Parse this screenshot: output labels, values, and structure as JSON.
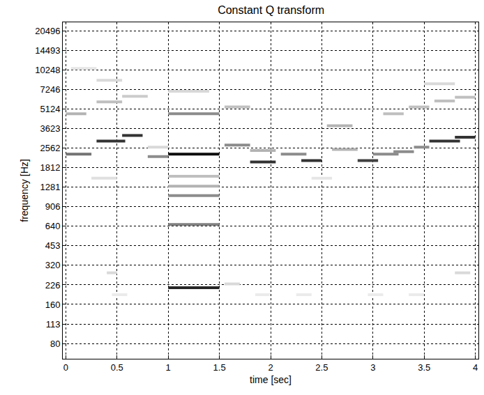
{
  "chart_data": {
    "type": "spectrogram",
    "title": "Constant Q transform",
    "x_label": "time [sec]",
    "y_label": "frequency [Hz]",
    "log": "y",
    "grid": true,
    "xlim": [
      -0.03,
      4.03
    ],
    "xticks": [
      0,
      0.5,
      1,
      1.5,
      2,
      2.5,
      3,
      3.5,
      4
    ],
    "ylim": [
      61,
      23800
    ],
    "yticks": [
      80,
      113,
      160,
      226,
      320,
      453,
      640,
      906,
      1281,
      1812,
      2562,
      3623,
      5124,
      7246,
      10248,
      14493,
      20496
    ],
    "color_range": [
      0,
      1
    ],
    "segments": [
      {
        "t0": 0.0,
        "t1": 0.25,
        "f": 2300,
        "level": 0.55
      },
      {
        "t0": 0.0,
        "t1": 0.2,
        "f": 4700,
        "level": 0.3
      },
      {
        "t0": 0.05,
        "t1": 0.3,
        "f": 10500,
        "level": 0.1
      },
      {
        "t0": 0.3,
        "t1": 0.58,
        "f": 2900,
        "level": 0.8
      },
      {
        "t0": 0.55,
        "t1": 0.75,
        "f": 3200,
        "level": 0.8
      },
      {
        "t0": 0.3,
        "t1": 0.55,
        "f": 5800,
        "level": 0.25
      },
      {
        "t0": 0.3,
        "t1": 0.55,
        "f": 8500,
        "level": 0.15
      },
      {
        "t0": 0.55,
        "t1": 0.8,
        "f": 6400,
        "level": 0.2
      },
      {
        "t0": 0.25,
        "t1": 0.5,
        "f": 1500,
        "level": 0.12
      },
      {
        "t0": 0.4,
        "t1": 0.5,
        "f": 280,
        "level": 0.15
      },
      {
        "t0": 0.8,
        "t1": 1.0,
        "f": 2200,
        "level": 0.45
      },
      {
        "t0": 0.8,
        "t1": 1.0,
        "f": 2600,
        "level": 0.15
      },
      {
        "t0": 1.0,
        "t1": 1.5,
        "f": 2300,
        "level": 0.95
      },
      {
        "t0": 1.0,
        "t1": 1.5,
        "f": 4700,
        "level": 0.45
      },
      {
        "t0": 1.0,
        "t1": 1.4,
        "f": 7000,
        "level": 0.15
      },
      {
        "t0": 1.0,
        "t1": 1.5,
        "f": 1100,
        "level": 0.45
      },
      {
        "t0": 1.0,
        "t1": 1.5,
        "f": 1300,
        "level": 0.3
      },
      {
        "t0": 1.0,
        "t1": 1.5,
        "f": 1550,
        "level": 0.25
      },
      {
        "t0": 1.0,
        "t1": 1.5,
        "f": 660,
        "level": 0.5
      },
      {
        "t0": 1.0,
        "t1": 1.5,
        "f": 215,
        "level": 0.85
      },
      {
        "t0": 1.55,
        "t1": 1.8,
        "f": 2700,
        "level": 0.45
      },
      {
        "t0": 1.55,
        "t1": 1.8,
        "f": 5300,
        "level": 0.25
      },
      {
        "t0": 1.55,
        "t1": 1.7,
        "f": 230,
        "level": 0.15
      },
      {
        "t0": 1.8,
        "t1": 2.05,
        "f": 2000,
        "level": 0.8
      },
      {
        "t0": 1.8,
        "t1": 2.05,
        "f": 2450,
        "level": 0.3
      },
      {
        "t0": 2.1,
        "t1": 2.35,
        "f": 2300,
        "level": 0.45
      },
      {
        "t0": 2.3,
        "t1": 2.5,
        "f": 2050,
        "level": 0.8
      },
      {
        "t0": 2.4,
        "t1": 2.6,
        "f": 1500,
        "level": 0.1
      },
      {
        "t0": 2.55,
        "t1": 2.8,
        "f": 3800,
        "level": 0.3
      },
      {
        "t0": 2.6,
        "t1": 2.85,
        "f": 2500,
        "level": 0.3
      },
      {
        "t0": 2.85,
        "t1": 3.05,
        "f": 2050,
        "level": 0.75
      },
      {
        "t0": 3.0,
        "t1": 3.25,
        "f": 2300,
        "level": 0.45
      },
      {
        "t0": 3.2,
        "t1": 3.4,
        "f": 2400,
        "level": 0.45
      },
      {
        "t0": 3.4,
        "t1": 3.55,
        "f": 2600,
        "level": 0.45
      },
      {
        "t0": 3.55,
        "t1": 3.85,
        "f": 2900,
        "level": 0.8
      },
      {
        "t0": 3.8,
        "t1": 4.0,
        "f": 3100,
        "level": 0.8
      },
      {
        "t0": 3.1,
        "t1": 3.3,
        "f": 4700,
        "level": 0.25
      },
      {
        "t0": 3.35,
        "t1": 3.55,
        "f": 5300,
        "level": 0.25
      },
      {
        "t0": 3.6,
        "t1": 3.8,
        "f": 5900,
        "level": 0.25
      },
      {
        "t0": 3.8,
        "t1": 4.0,
        "f": 6300,
        "level": 0.25
      },
      {
        "t0": 3.5,
        "t1": 3.8,
        "f": 8000,
        "level": 0.15
      },
      {
        "t0": 3.8,
        "t1": 3.95,
        "f": 280,
        "level": 0.15
      },
      {
        "t0": 0.45,
        "t1": 0.6,
        "f": 190,
        "level": 0.08
      },
      {
        "t0": 1.85,
        "t1": 2.0,
        "f": 190,
        "level": 0.08
      },
      {
        "t0": 2.25,
        "t1": 2.4,
        "f": 190,
        "level": 0.08
      },
      {
        "t0": 2.95,
        "t1": 3.1,
        "f": 190,
        "level": 0.08
      },
      {
        "t0": 3.35,
        "t1": 3.5,
        "f": 190,
        "level": 0.08
      }
    ]
  }
}
